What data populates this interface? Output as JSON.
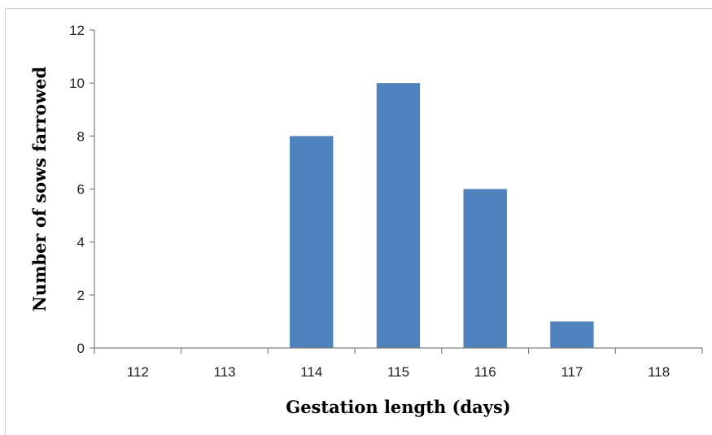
{
  "chart_data": {
    "type": "bar",
    "title": "",
    "xlabel": "Gestation length (days)",
    "ylabel": "Number of sows farrowed",
    "categories": [
      "112",
      "113",
      "114",
      "115",
      "116",
      "117",
      "118"
    ],
    "values": [
      0,
      0,
      8,
      10,
      6,
      1,
      0
    ],
    "ylim": [
      0,
      12
    ],
    "yticks": [
      "0",
      "2",
      "4",
      "6",
      "8",
      "10",
      "12"
    ],
    "grid": false,
    "legend": "none",
    "bar_color": "#4f81bd"
  }
}
